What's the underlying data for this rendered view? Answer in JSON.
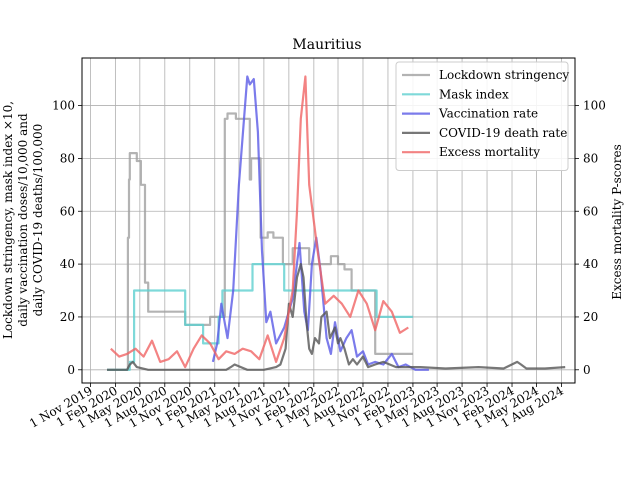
{
  "chart_data": {
    "type": "line",
    "title": "Mauritius",
    "ylabel_left": "Lockdown stringency, mask index ×10,\ndaily vaccination doses/10,000 and\ndaily COVID-19 deaths/100,000",
    "ylabel_right": "Excess mortality P-scores",
    "xlabel": "",
    "grid": true,
    "legend_position": "top-right",
    "x_ticks": [
      "1 Nov 2019",
      "1 Feb 2020",
      "1 May 2020",
      "1 Aug 2020",
      "1 Nov 2020",
      "1 Feb 2021",
      "1 May 2021",
      "1 Aug 2021",
      "1 Nov 2021",
      "1 Feb 2022",
      "1 May 2022",
      "1 Aug 2022",
      "1 Nov 2022",
      "1 Feb 2023",
      "1 May 2023",
      "1 Aug 2023",
      "1 Nov 2023",
      "1 Feb 2024",
      "1 May 2024",
      "1 Aug 2024"
    ],
    "xlim": [
      "2019-10-01",
      "2024-09-20"
    ],
    "y_ticks_left": [
      "0",
      "20",
      "40",
      "60",
      "80",
      "100"
    ],
    "y_ticks_right": [
      "0",
      "20",
      "40",
      "60",
      "80",
      "100"
    ],
    "ylim_left": [
      -5,
      118
    ],
    "ylim_right": [
      -5,
      118
    ],
    "series": [
      {
        "name": "Lockdown stringency",
        "color": "#a0a0a0",
        "step": true,
        "x": [
          "2020-01-01",
          "2020-03-18",
          "2020-03-22",
          "2020-03-25",
          "2020-04-20",
          "2020-05-05",
          "2020-05-20",
          "2020-06-01",
          "2020-07-10",
          "2020-10-15",
          "2021-01-15",
          "2021-03-10",
          "2021-03-20",
          "2021-04-20",
          "2021-06-10",
          "2021-06-15",
          "2021-07-01",
          "2021-07-20",
          "2021-08-15",
          "2021-09-05",
          "2021-10-10",
          "2021-11-15",
          "2021-12-10",
          "2022-01-15",
          "2022-02-15",
          "2022-04-05",
          "2022-05-01",
          "2022-05-25",
          "2022-06-20",
          "2022-08-20",
          "2022-09-15",
          "2023-02-01"
        ],
        "values": [
          0,
          50,
          72,
          82,
          79,
          70,
          33,
          22,
          22,
          17,
          20,
          95,
          97,
          95,
          72,
          80,
          80,
          50,
          52,
          50,
          40,
          46,
          46,
          40,
          40,
          43,
          40,
          38,
          30,
          30,
          6,
          6
        ]
      },
      {
        "name": "Mask index",
        "color": "#5ecfcf",
        "step": true,
        "x": [
          "2020-01-01",
          "2020-03-25",
          "2020-04-10",
          "2020-10-15",
          "2020-12-20",
          "2021-02-15",
          "2021-03-01",
          "2021-06-20",
          "2021-10-15",
          "2022-09-20",
          "2023-02-01"
        ],
        "values": [
          0,
          3,
          30,
          17,
          10,
          20,
          30,
          40,
          30,
          20,
          20
        ]
      },
      {
        "name": "Vaccination rate",
        "color": "#5a5ae6",
        "step": false,
        "x": [
          "2021-01-25",
          "2021-02-10",
          "2021-02-25",
          "2021-03-20",
          "2021-04-10",
          "2021-05-01",
          "2021-06-01",
          "2021-06-10",
          "2021-06-25",
          "2021-07-10",
          "2021-07-25",
          "2021-08-10",
          "2021-08-25",
          "2021-09-15",
          "2021-10-15",
          "2021-11-15",
          "2021-12-10",
          "2021-12-28",
          "2022-01-10",
          "2022-01-25",
          "2022-02-10",
          "2022-02-25",
          "2022-03-20",
          "2022-04-05",
          "2022-04-20",
          "2022-05-10",
          "2022-06-01",
          "2022-06-20",
          "2022-07-10",
          "2022-08-01",
          "2022-08-20",
          "2022-09-15",
          "2022-10-15",
          "2022-11-15",
          "2022-12-10",
          "2023-01-05",
          "2023-02-10",
          "2023-04-01"
        ],
        "values": [
          3,
          10,
          25,
          12,
          30,
          70,
          111,
          108,
          110,
          90,
          45,
          18,
          22,
          10,
          16,
          27,
          48,
          22,
          15,
          40,
          50,
          38,
          12,
          6,
          18,
          7,
          12,
          15,
          5,
          7,
          2,
          3,
          2,
          6,
          1,
          2,
          0,
          0
        ]
      },
      {
        "name": "COVID-19 death rate",
        "color": "#555555",
        "step": false,
        "x": [
          "2020-01-01",
          "2020-03-15",
          "2020-03-25",
          "2020-04-05",
          "2020-04-20",
          "2020-06-01",
          "2021-01-01",
          "2021-03-15",
          "2021-04-01",
          "2021-04-15",
          "2021-06-01",
          "2021-08-01",
          "2021-09-15",
          "2021-10-01",
          "2021-10-20",
          "2021-11-01",
          "2021-11-15",
          "2021-12-01",
          "2021-12-15",
          "2021-12-25",
          "2022-01-05",
          "2022-01-15",
          "2022-01-25",
          "2022-02-05",
          "2022-02-20",
          "2022-03-01",
          "2022-03-20",
          "2022-04-01",
          "2022-04-20",
          "2022-05-01",
          "2022-05-10",
          "2022-05-25",
          "2022-06-10",
          "2022-06-25",
          "2022-07-10",
          "2022-08-01",
          "2022-08-20",
          "2022-09-15",
          "2022-10-15",
          "2022-12-01",
          "2023-03-01",
          "2023-06-01",
          "2023-10-01",
          "2024-01-01",
          "2024-02-20",
          "2024-03-05",
          "2024-03-25",
          "2024-06-01",
          "2024-08-15"
        ],
        "values": [
          0,
          0,
          2,
          3,
          1,
          0,
          0,
          0,
          1,
          2,
          0,
          0,
          1,
          2,
          8,
          25,
          20,
          35,
          40,
          35,
          18,
          8,
          6,
          12,
          10,
          20,
          22,
          12,
          16,
          10,
          12,
          8,
          2,
          4,
          2,
          5,
          1,
          2,
          3,
          1,
          1,
          0.5,
          1,
          0.5,
          3,
          2,
          0.5,
          0.5,
          1
        ]
      },
      {
        "name": "Excess mortality",
        "color": "#f06464",
        "step": false,
        "x": [
          "2020-01-15",
          "2020-02-15",
          "2020-03-15",
          "2020-04-15",
          "2020-05-15",
          "2020-06-15",
          "2020-07-15",
          "2020-08-15",
          "2020-09-15",
          "2020-10-15",
          "2020-11-15",
          "2020-12-15",
          "2021-01-15",
          "2021-02-15",
          "2021-03-15",
          "2021-04-15",
          "2021-05-15",
          "2021-06-15",
          "2021-07-15",
          "2021-08-15",
          "2021-09-15",
          "2021-10-15",
          "2021-11-15",
          "2021-12-01",
          "2021-12-15",
          "2022-01-01",
          "2022-01-15",
          "2022-02-15",
          "2022-03-15",
          "2022-04-15",
          "2022-05-15",
          "2022-06-15",
          "2022-07-15",
          "2022-08-15",
          "2022-09-15",
          "2022-10-15",
          "2022-11-15",
          "2022-12-15",
          "2023-01-15"
        ],
        "values": [
          8,
          5,
          6,
          8,
          5,
          11,
          3,
          4,
          7,
          1,
          8,
          13,
          10,
          4,
          7,
          6,
          8,
          7,
          4,
          13,
          3,
          12,
          30,
          60,
          95,
          111,
          70,
          45,
          25,
          28,
          25,
          20,
          30,
          25,
          15,
          26,
          22,
          14,
          16
        ]
      }
    ]
  }
}
